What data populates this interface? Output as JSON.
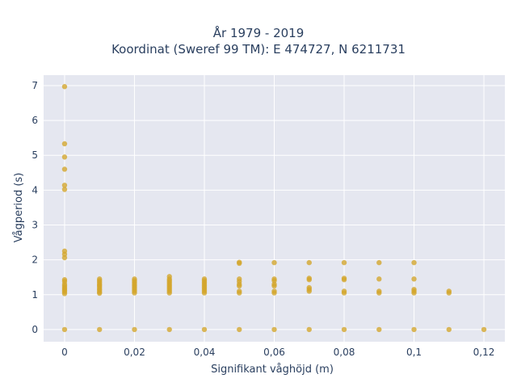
{
  "chart_data": {
    "type": "scatter",
    "title_line1": "År 1979 - 2019",
    "title_line2": "Koordinat (Sweref 99 TM): E 474727, N 6211731",
    "xlabel": "Signifikant våghöjd (m)",
    "ylabel": "Vågperiod (s)",
    "xlim": [
      -0.006,
      0.126
    ],
    "ylim": [
      -0.35,
      7.3
    ],
    "x_ticks": [
      0,
      0.02,
      0.04,
      0.06,
      0.08,
      0.1,
      0.12
    ],
    "x_tick_labels": [
      "0",
      "0,02",
      "0,04",
      "0,06",
      "0,08",
      "0,1",
      "0,12"
    ],
    "y_ticks": [
      0,
      1,
      2,
      3,
      4,
      5,
      6,
      7
    ],
    "y_tick_labels": [
      "0",
      "1",
      "2",
      "3",
      "4",
      "5",
      "6",
      "7"
    ],
    "grid": true,
    "colors": {
      "marker": "#d4a52a",
      "plot_bg": "#e5e7f0",
      "grid": "#ffffff",
      "text": "#2a3f5f"
    },
    "points": [
      [
        0,
        0
      ],
      [
        0,
        1.03
      ],
      [
        0,
        1.08
      ],
      [
        0,
        1.12
      ],
      [
        0,
        1.16
      ],
      [
        0,
        1.2
      ],
      [
        0,
        1.25
      ],
      [
        0,
        1.3
      ],
      [
        0,
        1.38
      ],
      [
        0,
        1.43
      ],
      [
        0,
        2.06
      ],
      [
        0,
        2.16
      ],
      [
        0,
        2.25
      ],
      [
        0,
        4.02
      ],
      [
        0,
        4.14
      ],
      [
        0,
        4.6
      ],
      [
        0,
        4.95
      ],
      [
        0,
        5.33
      ],
      [
        0,
        6.97
      ],
      [
        0.01,
        0
      ],
      [
        0.01,
        1.04
      ],
      [
        0.01,
        1.08
      ],
      [
        0.01,
        1.13
      ],
      [
        0.01,
        1.17
      ],
      [
        0.01,
        1.22
      ],
      [
        0.01,
        1.26
      ],
      [
        0.01,
        1.3
      ],
      [
        0.01,
        1.35
      ],
      [
        0.01,
        1.4
      ],
      [
        0.01,
        1.45
      ],
      [
        0.02,
        0
      ],
      [
        0.02,
        1.05
      ],
      [
        0.02,
        1.1
      ],
      [
        0.02,
        1.15
      ],
      [
        0.02,
        1.2
      ],
      [
        0.02,
        1.25
      ],
      [
        0.02,
        1.3
      ],
      [
        0.02,
        1.35
      ],
      [
        0.02,
        1.4
      ],
      [
        0.02,
        1.45
      ],
      [
        0.03,
        0
      ],
      [
        0.03,
        1.05
      ],
      [
        0.03,
        1.1
      ],
      [
        0.03,
        1.15
      ],
      [
        0.03,
        1.2
      ],
      [
        0.03,
        1.25
      ],
      [
        0.03,
        1.3
      ],
      [
        0.03,
        1.35
      ],
      [
        0.03,
        1.4
      ],
      [
        0.03,
        1.45
      ],
      [
        0.03,
        1.52
      ],
      [
        0.04,
        0
      ],
      [
        0.04,
        1.05
      ],
      [
        0.04,
        1.1
      ],
      [
        0.04,
        1.15
      ],
      [
        0.04,
        1.2
      ],
      [
        0.04,
        1.25
      ],
      [
        0.04,
        1.3
      ],
      [
        0.04,
        1.35
      ],
      [
        0.04,
        1.4
      ],
      [
        0.04,
        1.45
      ],
      [
        0.05,
        0
      ],
      [
        0.05,
        1.05
      ],
      [
        0.05,
        1.1
      ],
      [
        0.05,
        1.25
      ],
      [
        0.05,
        1.3
      ],
      [
        0.05,
        1.38
      ],
      [
        0.05,
        1.45
      ],
      [
        0.05,
        1.9
      ],
      [
        0.05,
        1.93
      ],
      [
        0.06,
        0
      ],
      [
        0.06,
        1.05
      ],
      [
        0.06,
        1.1
      ],
      [
        0.06,
        1.25
      ],
      [
        0.06,
        1.3
      ],
      [
        0.06,
        1.4
      ],
      [
        0.06,
        1.45
      ],
      [
        0.06,
        1.92
      ],
      [
        0.07,
        0
      ],
      [
        0.07,
        1.1
      ],
      [
        0.07,
        1.15
      ],
      [
        0.07,
        1.2
      ],
      [
        0.07,
        1.43
      ],
      [
        0.07,
        1.47
      ],
      [
        0.07,
        1.92
      ],
      [
        0.08,
        0
      ],
      [
        0.08,
        1.05
      ],
      [
        0.08,
        1.1
      ],
      [
        0.08,
        1.43
      ],
      [
        0.08,
        1.47
      ],
      [
        0.08,
        1.92
      ],
      [
        0.09,
        0
      ],
      [
        0.09,
        1.05
      ],
      [
        0.09,
        1.1
      ],
      [
        0.09,
        1.45
      ],
      [
        0.09,
        1.92
      ],
      [
        0.1,
        0
      ],
      [
        0.1,
        1.05
      ],
      [
        0.1,
        1.1
      ],
      [
        0.1,
        1.15
      ],
      [
        0.1,
        1.45
      ],
      [
        0.1,
        1.92
      ],
      [
        0.11,
        0
      ],
      [
        0.11,
        1.05
      ],
      [
        0.11,
        1.1
      ],
      [
        0.12,
        0
      ]
    ]
  }
}
